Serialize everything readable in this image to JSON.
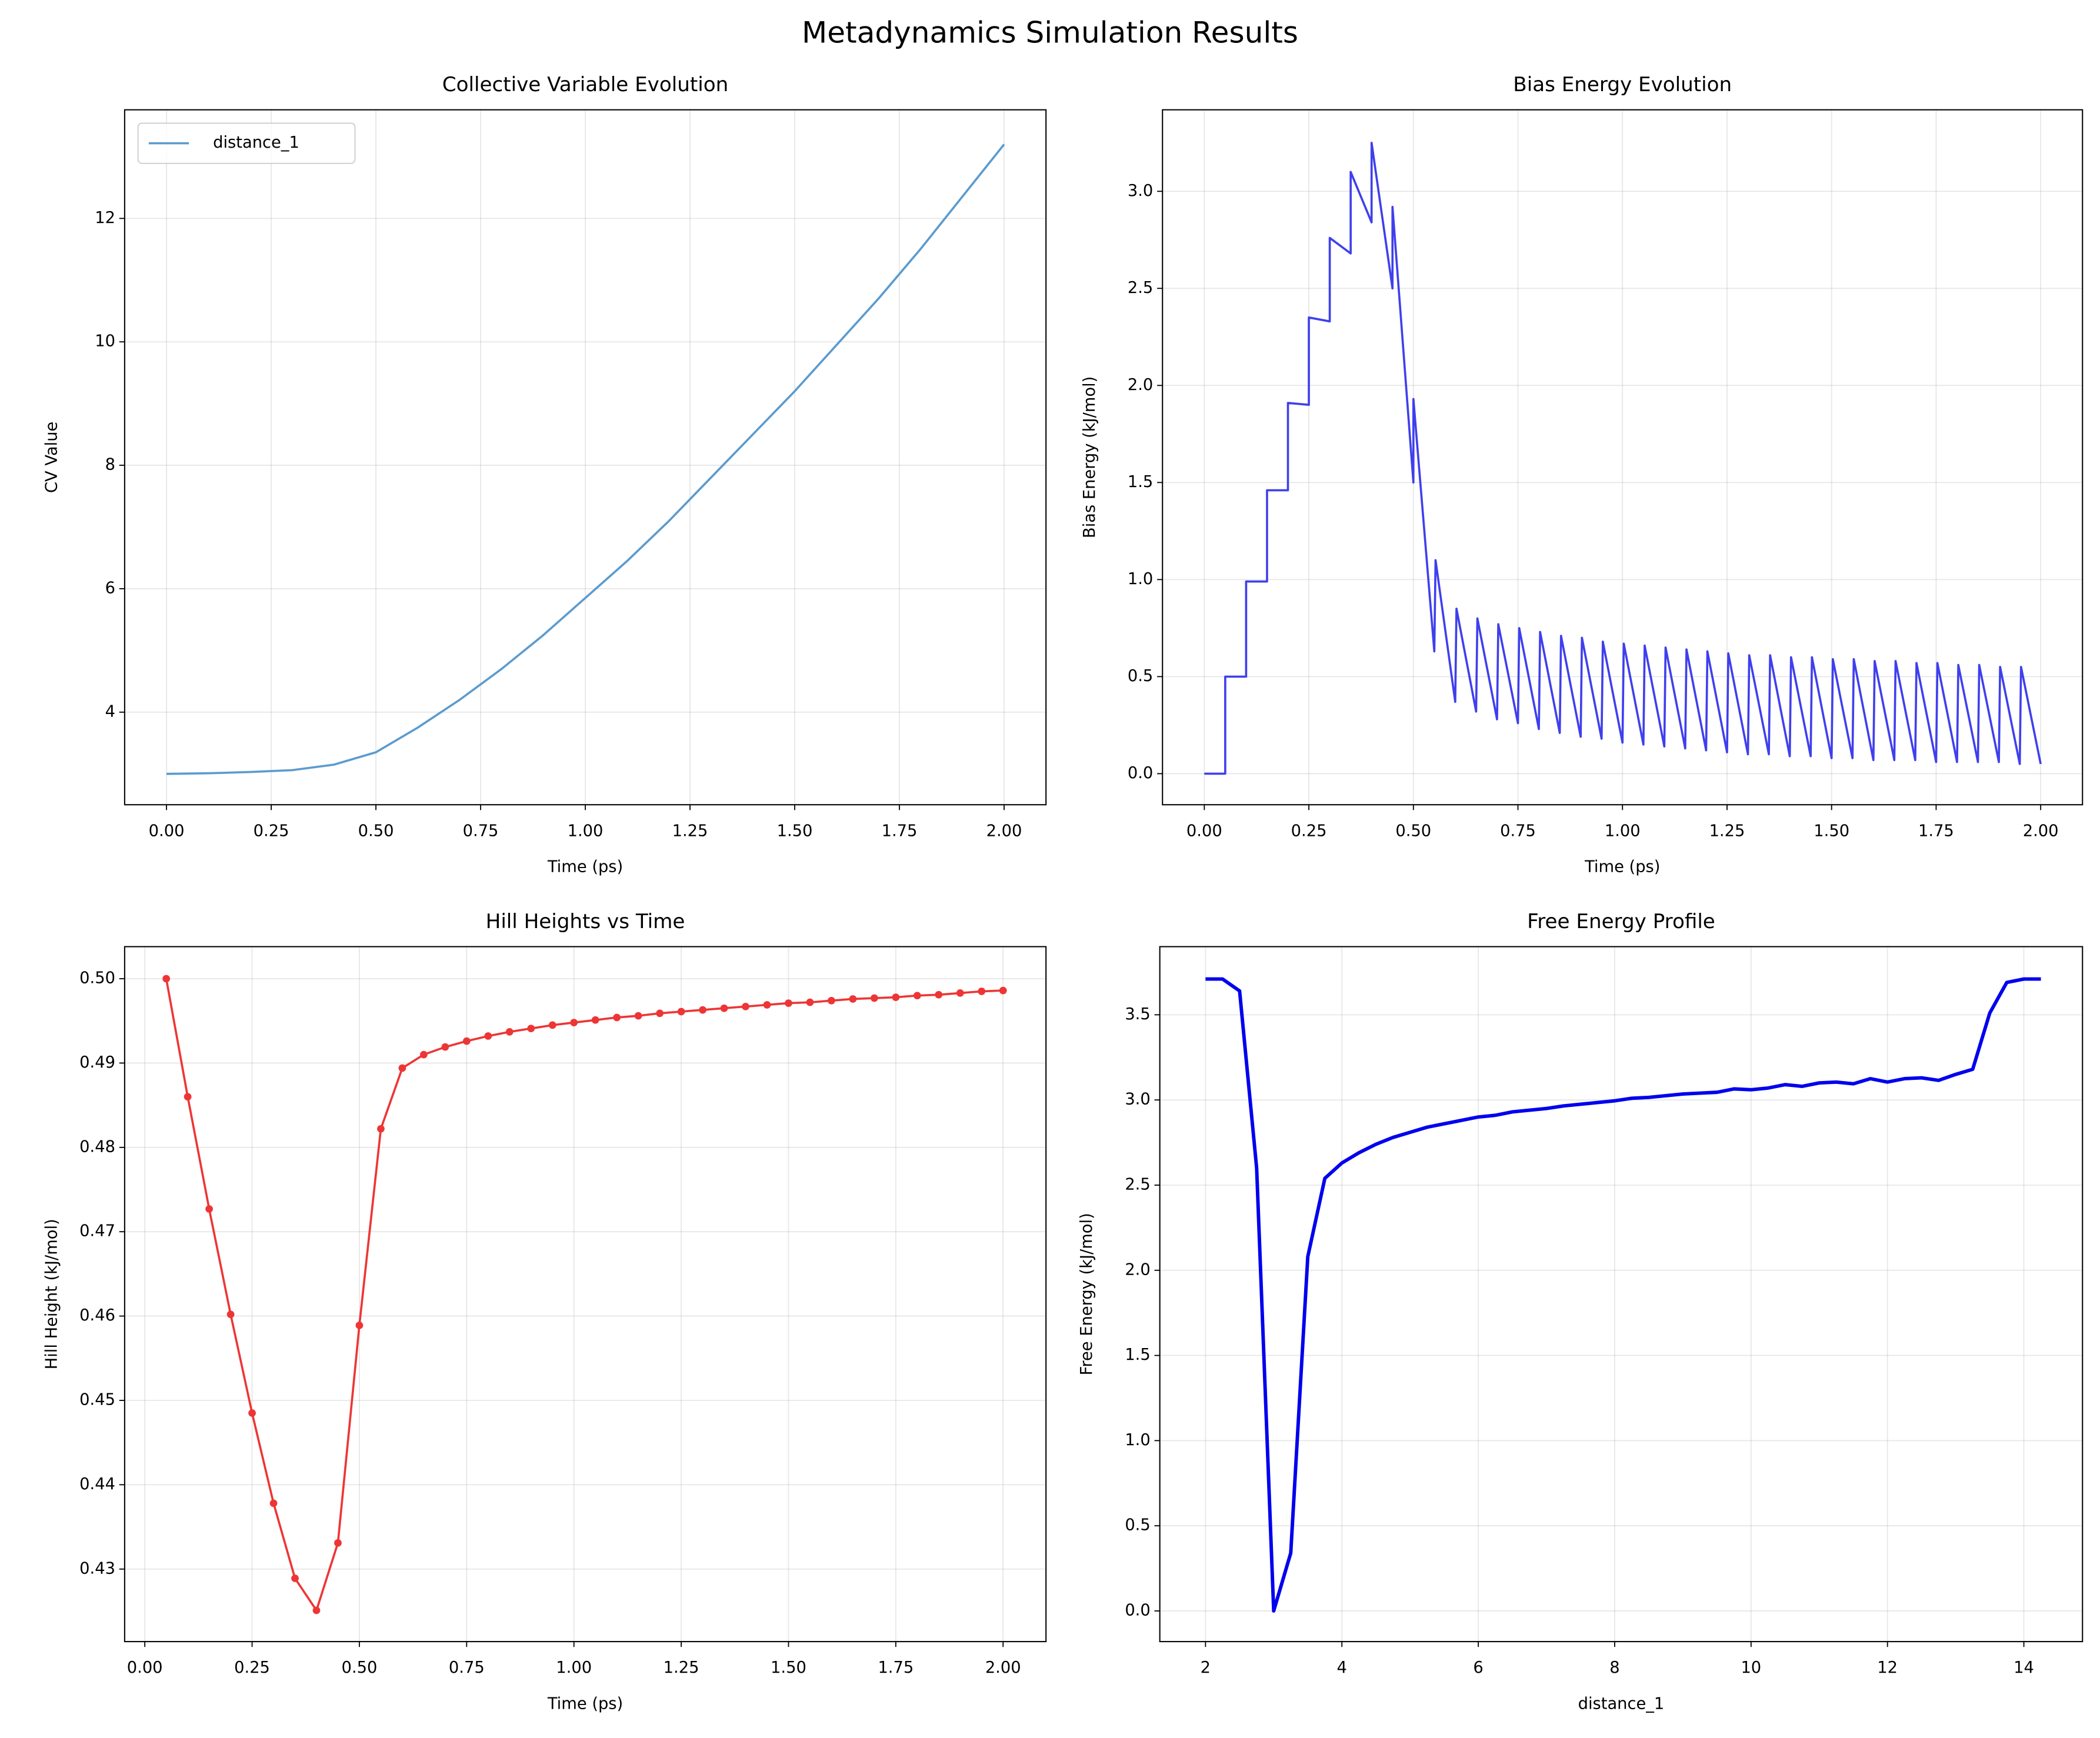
{
  "title": "Metadynamics Simulation Results",
  "chart_data": [
    {
      "type": "line",
      "title": "Collective Variable Evolution",
      "x_label": "Time (ps)",
      "y_label": "CV Value",
      "x": [
        0,
        0.1,
        0.2,
        0.3,
        0.4,
        0.5,
        0.6,
        0.7,
        0.8,
        0.9,
        1.0,
        1.1,
        1.2,
        1.3,
        1.4,
        1.5,
        1.6,
        1.7,
        1.8,
        1.9,
        2.0
      ],
      "series": [
        {
          "name": "distance_1",
          "color": "#5b9bce",
          "values": [
            3.0,
            3.01,
            3.03,
            3.06,
            3.15,
            3.35,
            3.75,
            4.2,
            4.7,
            5.25,
            5.85,
            6.45,
            7.1,
            7.8,
            8.5,
            9.2,
            9.95,
            10.7,
            11.5,
            12.35,
            13.2
          ]
        }
      ],
      "xlim": [
        -0.1,
        2.1
      ],
      "ylim": [
        2.5,
        13.76
      ],
      "xticks": [
        {
          "value": 0,
          "label": "0.00"
        },
        0.25,
        {
          "value": 0.5,
          "label": "0.50"
        },
        0.75,
        {
          "value": 1,
          "label": "1.00"
        },
        1.25,
        {
          "value": 1.5,
          "label": "1.50"
        },
        1.75,
        {
          "value": 2,
          "label": "2.00"
        }
      ],
      "yticks": [
        4,
        6,
        8,
        10,
        12
      ],
      "grid": true,
      "legend": "upper left",
      "line_width": 1.6
    },
    {
      "type": "line",
      "title": "Bias Energy Evolution",
      "x_label": "Time (ps)",
      "y_label": "Bias Energy (kJ/mol)",
      "x": [
        0,
        0.05,
        0.05,
        0.1,
        0.1,
        0.15,
        0.15,
        0.2,
        0.2,
        0.25,
        0.25,
        0.3,
        0.3,
        0.35,
        0.35,
        0.4,
        0.4,
        0.45,
        0.45,
        0.5,
        0.5,
        0.55,
        0.553,
        0.6,
        0.603,
        0.65,
        0.653,
        0.7,
        0.703,
        0.75,
        0.753,
        0.8,
        0.803,
        0.85,
        0.853,
        0.9,
        0.903,
        0.95,
        0.953,
        1.0,
        1.003,
        1.05,
        1.053,
        1.1,
        1.103,
        1.15,
        1.153,
        1.2,
        1.203,
        1.25,
        1.253,
        1.3,
        1.303,
        1.35,
        1.353,
        1.4,
        1.403,
        1.45,
        1.453,
        1.5,
        1.503,
        1.55,
        1.553,
        1.6,
        1.603,
        1.65,
        1.653,
        1.7,
        1.703,
        1.75,
        1.753,
        1.8,
        1.803,
        1.85,
        1.853,
        1.9,
        1.903,
        1.95,
        1.953,
        2.0
      ],
      "series": [
        {
          "color": "#3f3fee",
          "values": [
            0,
            0,
            0.5,
            0.5,
            0.99,
            0.99,
            1.46,
            1.46,
            1.91,
            1.9,
            2.35,
            2.33,
            2.76,
            2.68,
            3.1,
            2.84,
            3.25,
            2.5,
            2.92,
            1.5,
            1.93,
            0.63,
            1.1,
            0.37,
            0.85,
            0.32,
            0.8,
            0.28,
            0.77,
            0.26,
            0.75,
            0.23,
            0.73,
            0.21,
            0.71,
            0.19,
            0.7,
            0.18,
            0.68,
            0.16,
            0.67,
            0.15,
            0.66,
            0.14,
            0.65,
            0.13,
            0.64,
            0.12,
            0.63,
            0.11,
            0.62,
            0.1,
            0.61,
            0.1,
            0.61,
            0.09,
            0.6,
            0.09,
            0.6,
            0.08,
            0.59,
            0.08,
            0.59,
            0.07,
            0.58,
            0.07,
            0.58,
            0.07,
            0.57,
            0.06,
            0.57,
            0.06,
            0.56,
            0.06,
            0.56,
            0.06,
            0.55,
            0.05,
            0.55,
            0.05
          ]
        }
      ],
      "xlim": [
        -0.1,
        2.1
      ],
      "ylim": [
        -0.16,
        3.42
      ],
      "xticks": [
        {
          "value": 0,
          "label": "0.00"
        },
        0.25,
        {
          "value": 0.5,
          "label": "0.50"
        },
        0.75,
        {
          "value": 1,
          "label": "1.00"
        },
        1.25,
        {
          "value": 1.5,
          "label": "1.50"
        },
        1.75,
        {
          "value": 2,
          "label": "2.00"
        }
      ],
      "yticks": [
        {
          "value": 0,
          "label": "0.0"
        },
        0.5,
        {
          "value": 1,
          "label": "1.0"
        },
        1.5,
        {
          "value": 2,
          "label": "2.0"
        },
        2.5,
        {
          "value": 3,
          "label": "3.0"
        }
      ],
      "grid": true,
      "line_width": 1.6
    },
    {
      "type": "line",
      "title": "Hill Heights vs Time",
      "x_label": "Time (ps)",
      "y_label": "Hill Height (kJ/mol)",
      "x": [
        0.05,
        0.1,
        0.15,
        0.2,
        0.25,
        0.3,
        0.35,
        0.4,
        0.45,
        0.5,
        0.55,
        0.6,
        0.65,
        0.7,
        0.75,
        0.8,
        0.85,
        0.9,
        0.95,
        1.0,
        1.05,
        1.1,
        1.15,
        1.2,
        1.25,
        1.3,
        1.35,
        1.4,
        1.45,
        1.5,
        1.55,
        1.6,
        1.65,
        1.7,
        1.75,
        1.8,
        1.85,
        1.9,
        1.95,
        2.0
      ],
      "series": [
        {
          "color": "#ee3535",
          "values": [
            0.5,
            0.486,
            0.4727,
            0.4602,
            0.4485,
            0.4378,
            0.4289,
            0.4251,
            0.4331,
            0.4589,
            0.4822,
            0.4894,
            0.491,
            0.4919,
            0.4926,
            0.4932,
            0.4937,
            0.4941,
            0.4945,
            0.4948,
            0.4951,
            0.4954,
            0.4956,
            0.4959,
            0.4961,
            0.4963,
            0.4965,
            0.4967,
            0.4969,
            0.4971,
            0.4972,
            0.4974,
            0.4976,
            0.4977,
            0.4978,
            0.498,
            0.4981,
            0.4983,
            0.4985,
            0.4986
          ]
        }
      ],
      "xlim": [
        -0.047,
        2.1
      ],
      "ylim": [
        0.4214,
        0.5038
      ],
      "xticks": [
        {
          "value": 0,
          "label": "0.00"
        },
        0.25,
        {
          "value": 0.5,
          "label": "0.50"
        },
        0.75,
        {
          "value": 1,
          "label": "1.00"
        },
        1.25,
        {
          "value": 1.5,
          "label": "1.50"
        },
        1.75,
        {
          "value": 2,
          "label": "2.00"
        }
      ],
      "yticks": [
        0.43,
        0.44,
        0.45,
        0.46,
        0.47,
        0.48,
        0.49,
        {
          "value": 0.5,
          "label": "0.50"
        }
      ],
      "grid": true,
      "markers": true,
      "line_width": 1.6
    },
    {
      "type": "line",
      "title": "Free Energy Profile",
      "x_label": "distance_1",
      "y_label": "Free Energy (kJ/mol)",
      "x": [
        2.0,
        2.25,
        2.5,
        2.75,
        3.0,
        3.25,
        3.5,
        3.75,
        4.0,
        4.25,
        4.5,
        4.75,
        5.0,
        5.25,
        5.5,
        5.75,
        6.0,
        6.25,
        6.5,
        6.75,
        7.0,
        7.25,
        7.5,
        7.75,
        8.0,
        8.25,
        8.5,
        8.75,
        9.0,
        9.25,
        9.5,
        9.75,
        10.0,
        10.25,
        10.5,
        10.75,
        11.0,
        11.25,
        11.5,
        11.75,
        12.0,
        12.25,
        12.5,
        12.75,
        13.0,
        13.25,
        13.5,
        13.75,
        14.0,
        14.25
      ],
      "series": [
        {
          "color": "#0000ee",
          "values": [
            3.71,
            3.71,
            3.64,
            2.6,
            0.0,
            0.34,
            2.08,
            2.54,
            2.63,
            2.69,
            2.74,
            2.78,
            2.81,
            2.84,
            2.86,
            2.88,
            2.9,
            2.91,
            2.93,
            2.94,
            2.95,
            2.965,
            2.975,
            2.985,
            2.995,
            3.01,
            3.015,
            3.025,
            3.035,
            3.04,
            3.045,
            3.065,
            3.06,
            3.07,
            3.09,
            3.08,
            3.1,
            3.105,
            3.095,
            3.125,
            3.105,
            3.125,
            3.13,
            3.115,
            3.15,
            3.18,
            3.51,
            3.69,
            3.71,
            3.71
          ]
        }
      ],
      "xlim": [
        1.33,
        14.86
      ],
      "ylim": [
        -0.18,
        3.9
      ],
      "xticks": [
        2,
        4,
        6,
        8,
        10,
        12,
        14
      ],
      "yticks": [
        {
          "value": 0,
          "label": "0.0"
        },
        0.5,
        {
          "value": 1,
          "label": "1.0"
        },
        1.5,
        {
          "value": 2,
          "label": "2.0"
        },
        2.5,
        {
          "value": 3,
          "label": "3.0"
        },
        3.5
      ],
      "grid": true,
      "line_width": 2.6
    }
  ]
}
